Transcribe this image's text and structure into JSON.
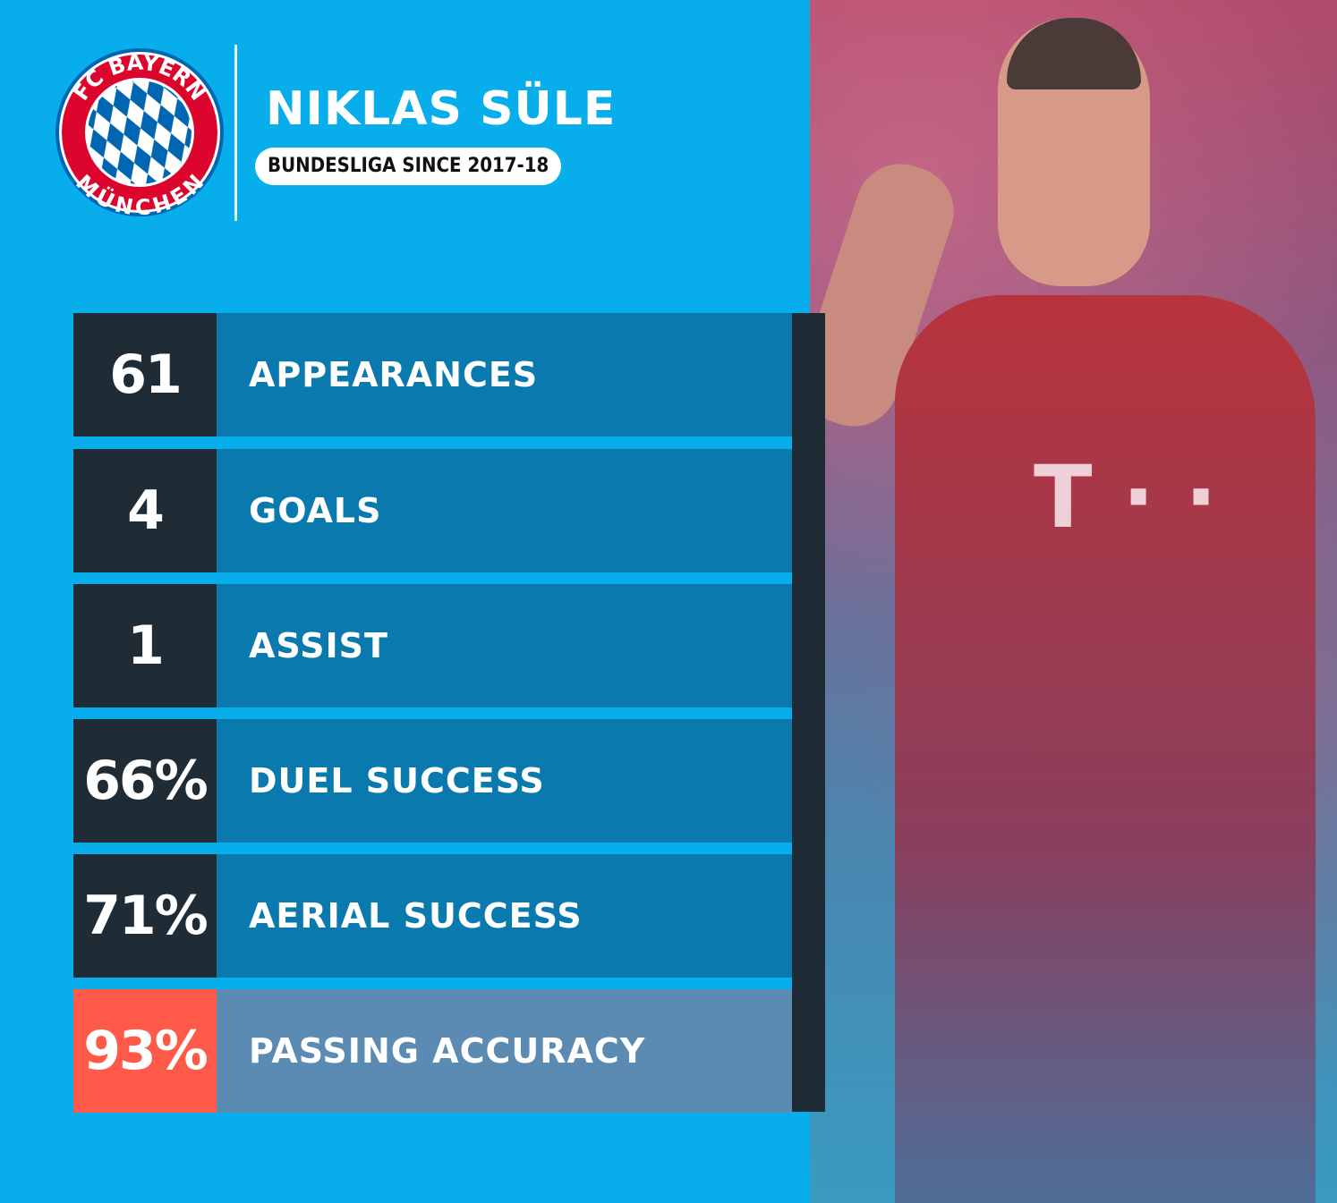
{
  "logo": {
    "text_top": "FC BAYERN",
    "text_bottom": "MÜNCHEN",
    "colors": {
      "ring": "#dc052d",
      "blue": "#0066b2"
    }
  },
  "header": {
    "player_name": "NIKLAS SÜLE",
    "subtitle": "BUNDESLIGA SINCE 2017-18"
  },
  "stats": [
    {
      "value": "61",
      "label": "APPEARANCES"
    },
    {
      "value": "4",
      "label": "GOALS"
    },
    {
      "value": "1",
      "label": "ASSIST"
    },
    {
      "value": "66%",
      "label": "DUEL SUCCESS"
    },
    {
      "value": "71%",
      "label": "AERIAL SUCCESS"
    },
    {
      "value": "93%",
      "label": "PASSING ACCURACY",
      "highlight": true
    }
  ],
  "colors": {
    "background": "#08aeec",
    "value_box": "#1f2b35",
    "label_box": "#0a7aae",
    "highlight_value": "#ff5a49",
    "highlight_label": "#5b8bb2"
  }
}
